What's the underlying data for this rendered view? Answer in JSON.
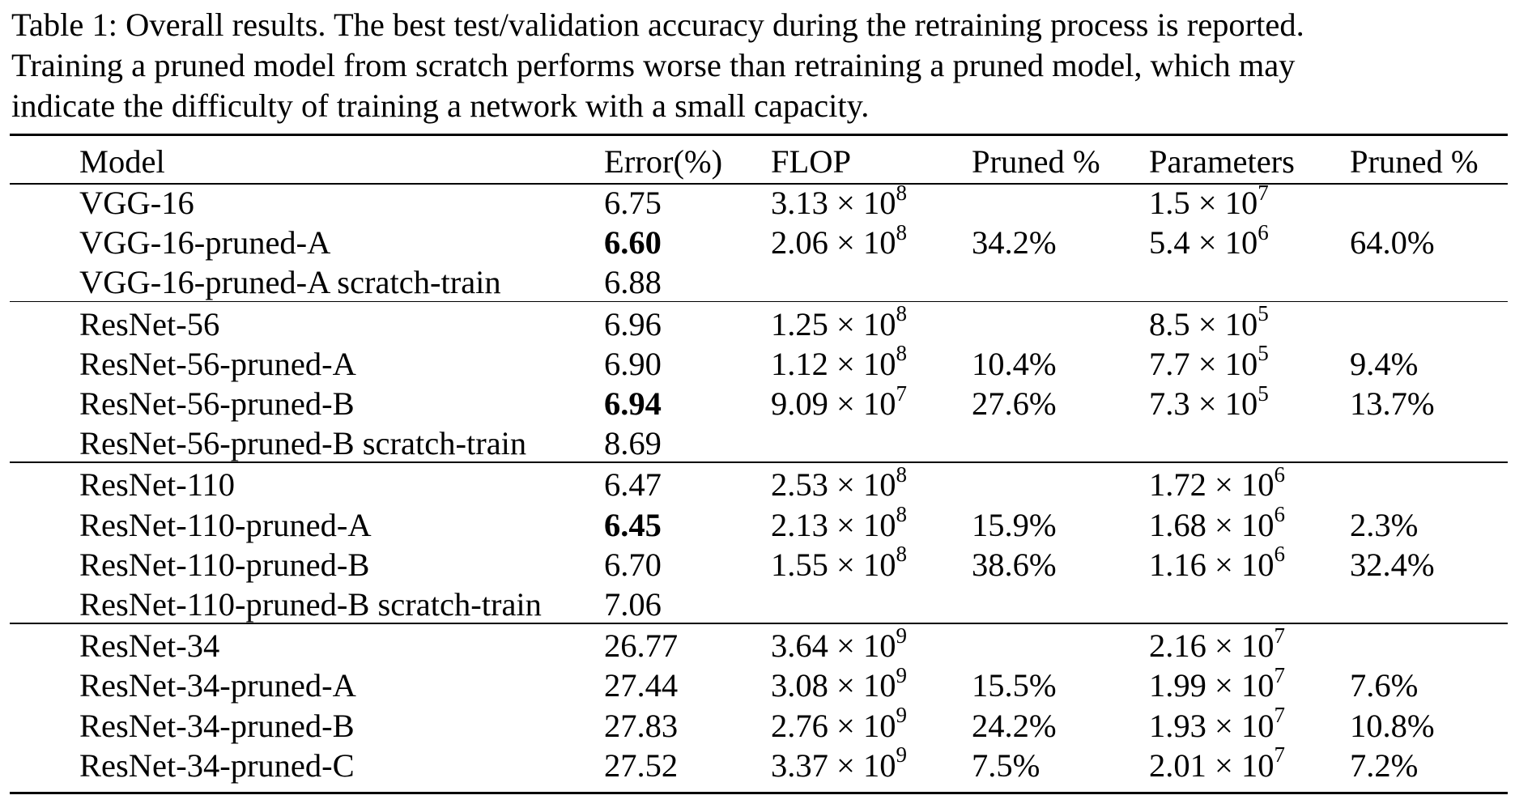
{
  "caption": {
    "lines": [
      "Table 1: Overall results. The best test/validation accuracy during the retraining process is reported.",
      "Training a pruned model from scratch performs worse than retraining a pruned model, which may",
      "indicate the difficulty of training a network with a small capacity."
    ]
  },
  "table": {
    "headers": [
      "Model",
      "Error(%)",
      "FLOP",
      "Pruned %",
      "Parameters",
      "Pruned %"
    ],
    "groups": [
      {
        "rows": [
          {
            "model": "VGG-16",
            "error": "6.75",
            "error_bold": false,
            "flop_m": "3.13",
            "flop_e": "8",
            "flop_pruned": "",
            "param_m": "1.5",
            "param_e": "7",
            "param_pruned": ""
          },
          {
            "model": "VGG-16-pruned-A",
            "error": "6.60",
            "error_bold": true,
            "flop_m": "2.06",
            "flop_e": "8",
            "flop_pruned": "34.2%",
            "param_m": "5.4",
            "param_e": "6",
            "param_pruned": "64.0%"
          },
          {
            "model": "VGG-16-pruned-A scratch-train",
            "error": "6.88",
            "error_bold": false,
            "flop_m": "",
            "flop_e": "",
            "flop_pruned": "",
            "param_m": "",
            "param_e": "",
            "param_pruned": ""
          }
        ]
      },
      {
        "rows": [
          {
            "model": "ResNet-56",
            "error": "6.96",
            "error_bold": false,
            "flop_m": "1.25",
            "flop_e": "8",
            "flop_pruned": "",
            "param_m": "8.5",
            "param_e": "5",
            "param_pruned": ""
          },
          {
            "model": "ResNet-56-pruned-A",
            "error": "6.90",
            "error_bold": false,
            "flop_m": "1.12",
            "flop_e": "8",
            "flop_pruned": "10.4%",
            "param_m": "7.7",
            "param_e": "5",
            "param_pruned": "9.4%"
          },
          {
            "model": "ResNet-56-pruned-B",
            "error": "6.94",
            "error_bold": true,
            "flop_m": "9.09",
            "flop_e": "7",
            "flop_pruned": "27.6%",
            "param_m": "7.3",
            "param_e": "5",
            "param_pruned": "13.7%"
          },
          {
            "model": "ResNet-56-pruned-B scratch-train",
            "error": "8.69",
            "error_bold": false,
            "flop_m": "",
            "flop_e": "",
            "flop_pruned": "",
            "param_m": "",
            "param_e": "",
            "param_pruned": ""
          }
        ]
      },
      {
        "rows": [
          {
            "model": "ResNet-110",
            "error": "6.47",
            "error_bold": false,
            "flop_m": "2.53",
            "flop_e": "8",
            "flop_pruned": "",
            "param_m": "1.72",
            "param_e": "6",
            "param_pruned": ""
          },
          {
            "model": "ResNet-110-pruned-A",
            "error": "6.45",
            "error_bold": true,
            "flop_m": "2.13",
            "flop_e": "8",
            "flop_pruned": "15.9%",
            "param_m": "1.68",
            "param_e": "6",
            "param_pruned": "2.3%"
          },
          {
            "model": "ResNet-110-pruned-B",
            "error": "6.70",
            "error_bold": false,
            "flop_m": "1.55",
            "flop_e": "8",
            "flop_pruned": "38.6%",
            "param_m": "1.16",
            "param_e": "6",
            "param_pruned": "32.4%"
          },
          {
            "model": "ResNet-110-pruned-B scratch-train",
            "error": "7.06",
            "error_bold": false,
            "flop_m": "",
            "flop_e": "",
            "flop_pruned": "",
            "param_m": "",
            "param_e": "",
            "param_pruned": ""
          }
        ]
      },
      {
        "rows": [
          {
            "model": "ResNet-34",
            "error": "26.77",
            "error_bold": false,
            "flop_m": "3.64",
            "flop_e": "9",
            "flop_pruned": "",
            "param_m": "2.16",
            "param_e": "7",
            "param_pruned": ""
          },
          {
            "model": "ResNet-34-pruned-A",
            "error": "27.44",
            "error_bold": false,
            "flop_m": "3.08",
            "flop_e": "9",
            "flop_pruned": "15.5%",
            "param_m": "1.99",
            "param_e": "7",
            "param_pruned": "7.6%"
          },
          {
            "model": "ResNet-34-pruned-B",
            "error": "27.83",
            "error_bold": false,
            "flop_m": "2.76",
            "flop_e": "9",
            "flop_pruned": "24.2%",
            "param_m": "1.93",
            "param_e": "7",
            "param_pruned": "10.8%"
          },
          {
            "model": "ResNet-34-pruned-C",
            "error": "27.52",
            "error_bold": false,
            "flop_m": "3.37",
            "flop_e": "9",
            "flop_pruned": "7.5%",
            "param_m": "2.01",
            "param_e": "7",
            "param_pruned": "7.2%"
          }
        ]
      }
    ]
  }
}
